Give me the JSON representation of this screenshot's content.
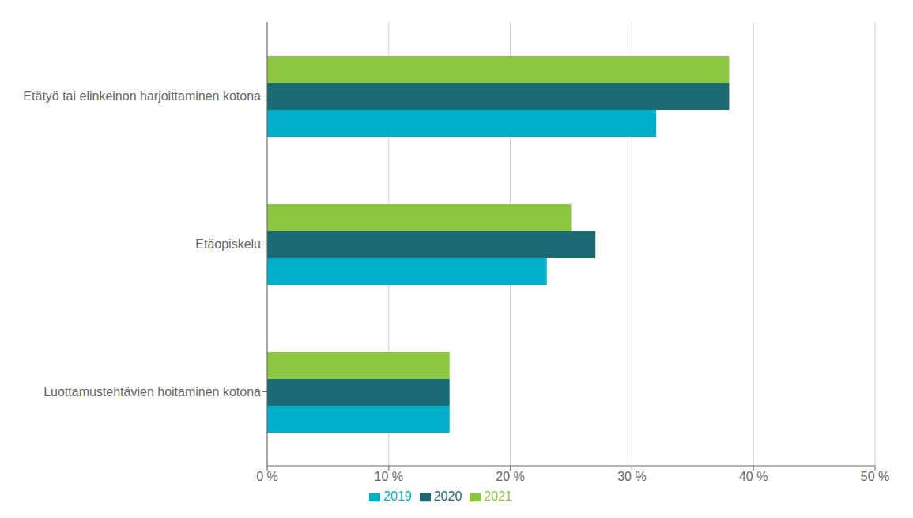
{
  "chart_data": {
    "type": "bar",
    "orientation": "horizontal",
    "categories": [
      "Etätyö tai elinkeinon harjoittaminen kotona",
      "Etäopiskelu",
      "Luottamustehtävien hoitaminen kotona"
    ],
    "series": [
      {
        "name": "2021",
        "color": "#8dc63f",
        "values": [
          38,
          25,
          15
        ]
      },
      {
        "name": "2020",
        "color": "#1a6b74",
        "values": [
          38,
          27,
          15
        ]
      },
      {
        "name": "2019",
        "color": "#00b0c8",
        "values": [
          32,
          23,
          15
        ]
      }
    ],
    "xlim": [
      0,
      50
    ],
    "xticks": [
      {
        "value": 0,
        "label": "0 %"
      },
      {
        "value": 10,
        "label": "10 %"
      },
      {
        "value": 20,
        "label": "20 %"
      },
      {
        "value": 30,
        "label": "30 %"
      },
      {
        "value": 40,
        "label": "40 %"
      },
      {
        "value": 50,
        "label": "50 %"
      }
    ],
    "grid": true,
    "legend": "bottom"
  }
}
